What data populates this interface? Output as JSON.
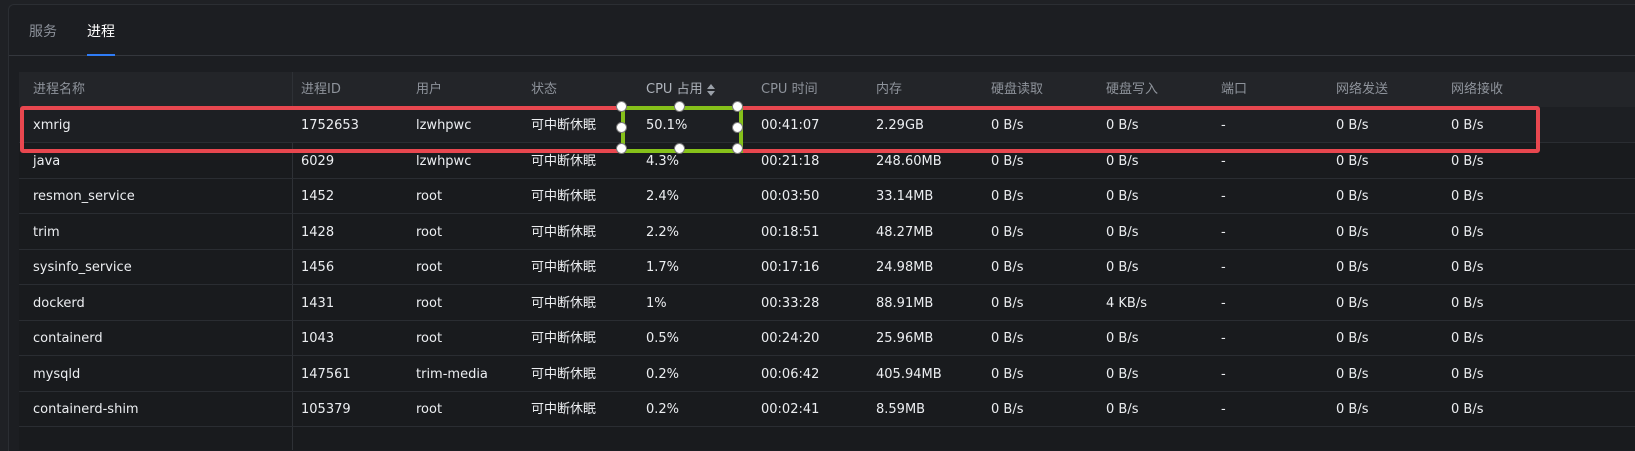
{
  "tabs": [
    {
      "label": "服务",
      "active": false
    },
    {
      "label": "进程",
      "active": true
    }
  ],
  "table": {
    "columns": [
      "进程名称",
      "进程ID",
      "用户",
      "状态",
      "CPU 占用",
      "CPU 时间",
      "内存",
      "硬盘读取",
      "硬盘写入",
      "端口",
      "网络发送",
      "网络接收"
    ],
    "sorted_column": "CPU 占用",
    "sort_direction": "descending",
    "rows": [
      [
        "xmrig",
        "1752653",
        "lzwhpwc",
        "可中断休眠",
        "50.1%",
        "00:41:07",
        "2.29GB",
        "0 B/s",
        "0 B/s",
        "-",
        "0 B/s",
        "0 B/s"
      ],
      [
        "java",
        "6029",
        "lzwhpwc",
        "可中断休眠",
        "4.3%",
        "00:21:18",
        "248.60MB",
        "0 B/s",
        "0 B/s",
        "-",
        "0 B/s",
        "0 B/s"
      ],
      [
        "resmon_service",
        "1452",
        "root",
        "可中断休眠",
        "2.4%",
        "00:03:50",
        "33.14MB",
        "0 B/s",
        "0 B/s",
        "-",
        "0 B/s",
        "0 B/s"
      ],
      [
        "trim",
        "1428",
        "root",
        "可中断休眠",
        "2.2%",
        "00:18:51",
        "48.27MB",
        "0 B/s",
        "0 B/s",
        "-",
        "0 B/s",
        "0 B/s"
      ],
      [
        "sysinfo_service",
        "1456",
        "root",
        "可中断休眠",
        "1.7%",
        "00:17:16",
        "24.98MB",
        "0 B/s",
        "0 B/s",
        "-",
        "0 B/s",
        "0 B/s"
      ],
      [
        "dockerd",
        "1431",
        "root",
        "可中断休眠",
        "1%",
        "00:33:28",
        "88.91MB",
        "0 B/s",
        "4 KB/s",
        "-",
        "0 B/s",
        "0 B/s"
      ],
      [
        "containerd",
        "1043",
        "root",
        "可中断休眠",
        "0.5%",
        "00:24:20",
        "25.96MB",
        "0 B/s",
        "0 B/s",
        "-",
        "0 B/s",
        "0 B/s"
      ],
      [
        "mysqld",
        "147561",
        "trim-media",
        "可中断休眠",
        "0.2%",
        "00:06:42",
        "405.94MB",
        "0 B/s",
        "0 B/s",
        "-",
        "0 B/s",
        "0 B/s"
      ],
      [
        "containerd-shim",
        "105379",
        "root",
        "可中断休眠",
        "0.2%",
        "00:02:41",
        "8.59MB",
        "0 B/s",
        "0 B/s",
        "-",
        "0 B/s",
        "0 B/s"
      ]
    ]
  },
  "annotations": {
    "highlight_row_color": "#e8474f",
    "highlight_cell_color": "#86c11a"
  },
  "icons": {
    "sort": "sort-desc-icon"
  }
}
